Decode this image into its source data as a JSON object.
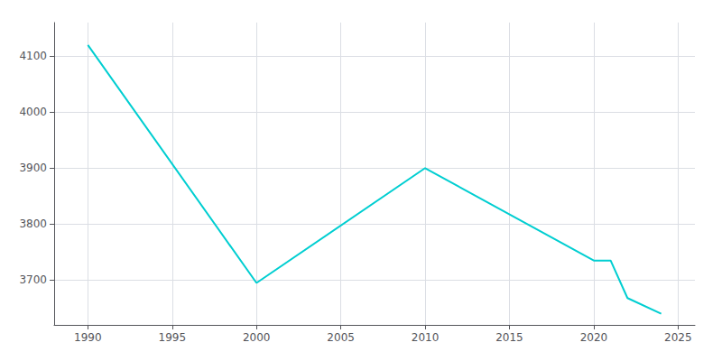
{
  "chart_data": {
    "type": "line",
    "x": [
      1990,
      2000,
      2010,
      2020,
      2021,
      2022,
      2024
    ],
    "values": [
      4120,
      3695,
      3900,
      3735,
      3735,
      3668,
      3640
    ],
    "color": "#00CED1",
    "xlim": [
      1988,
      2026
    ],
    "ylim": [
      3620,
      4160
    ],
    "xticks": [
      1990,
      1995,
      2000,
      2005,
      2010,
      2015,
      2020,
      2025
    ],
    "yticks": [
      3700,
      3800,
      3900,
      4000,
      4100
    ],
    "grid": true
  }
}
